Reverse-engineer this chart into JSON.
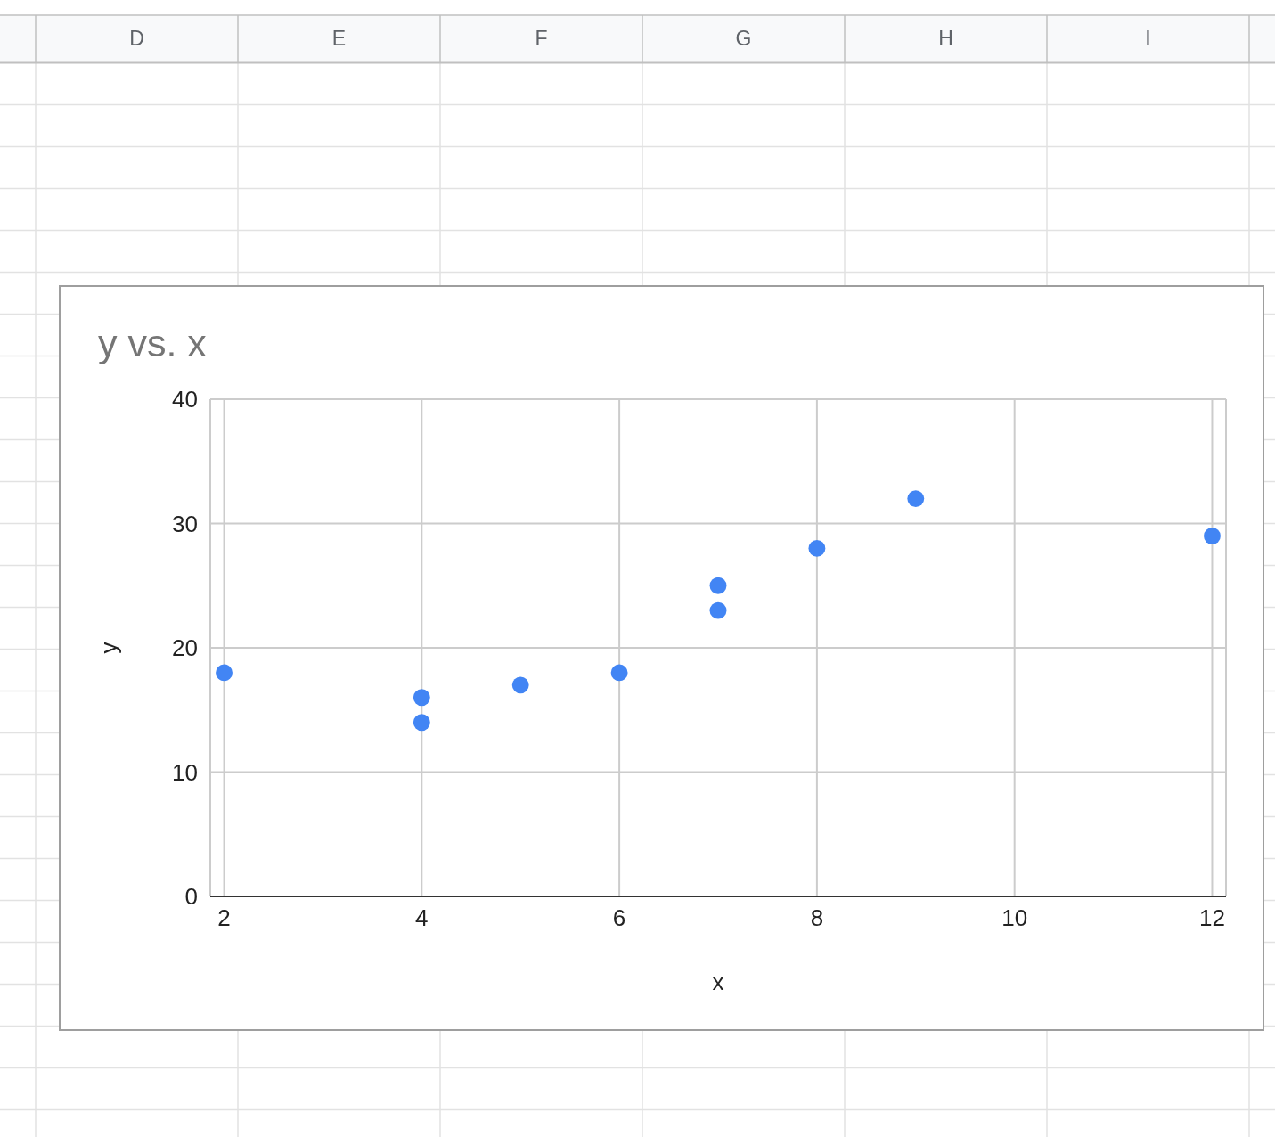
{
  "chart_data": {
    "type": "scatter",
    "title": "y vs. x",
    "xlabel": "x",
    "ylabel": "y",
    "x": [
      2,
      4,
      4,
      5,
      6,
      7,
      7,
      8,
      9,
      12
    ],
    "values": [
      18,
      16,
      14,
      17,
      18,
      25,
      23,
      28,
      32,
      29
    ],
    "color": "#4285f4",
    "xlim": [
      1.86,
      12.14
    ],
    "xticks": [
      2,
      4,
      6,
      8,
      10,
      12
    ],
    "ylim": [
      0,
      40
    ],
    "yticks": [
      0,
      10,
      20,
      30,
      40
    ],
    "grid": true,
    "marker": "circle",
    "annotations": [
      "D",
      "E",
      "F",
      "G",
      "H",
      "I"
    ]
  }
}
